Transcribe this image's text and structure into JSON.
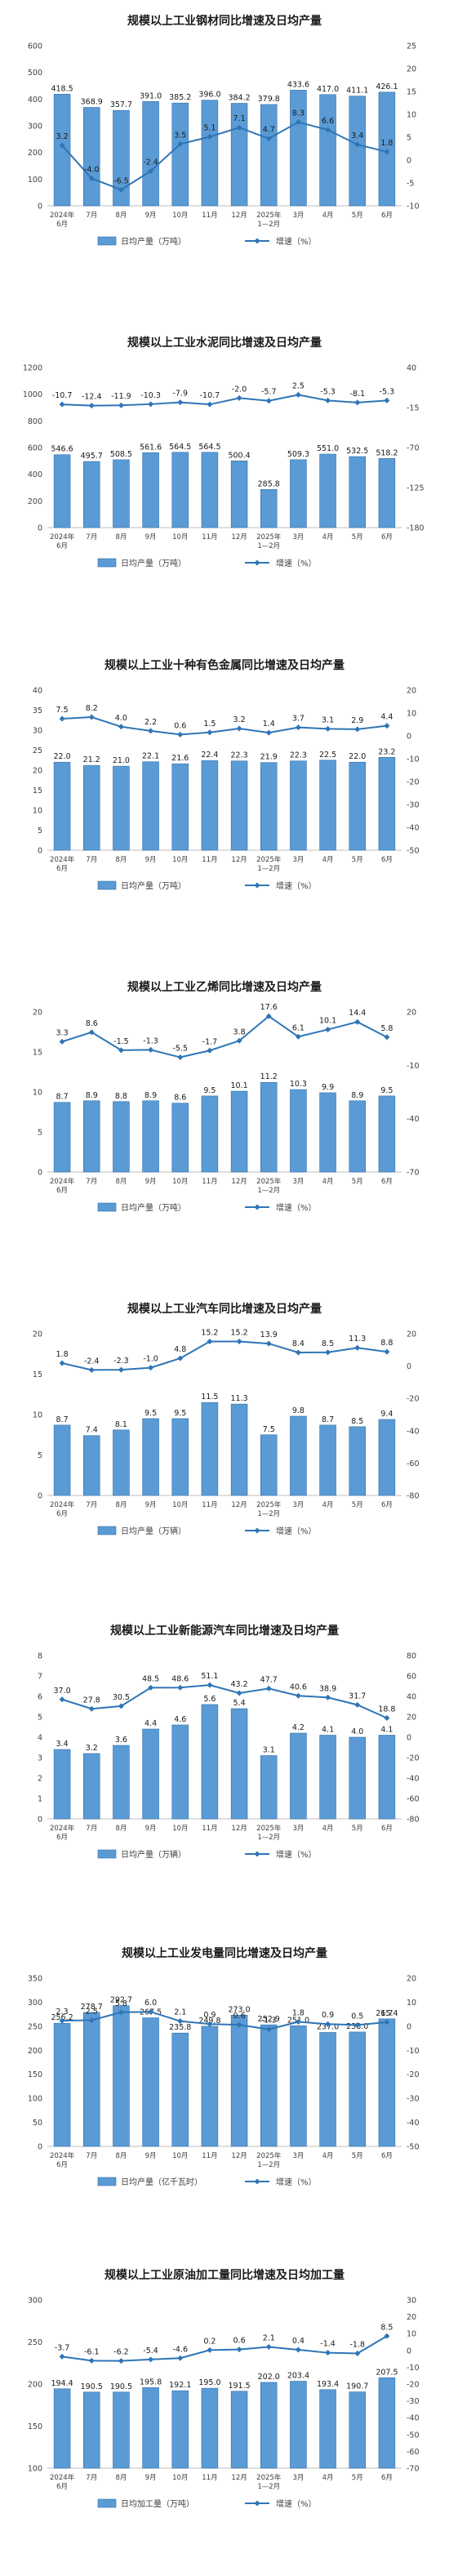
{
  "charts_meta": {
    "bar_color": "#5b9bd5",
    "bar_stroke": "#2f6ea8",
    "line_color": "#2e75b6",
    "grid_color": "#d9d9d9",
    "axis_text_color": "#404040"
  },
  "chart_data": [
    {
      "type": "bar+line",
      "title": "规模以上工业钢材同比增速及日均产量",
      "categories": [
        "2024年6月",
        "7月",
        "8月",
        "9月",
        "10月",
        "11月",
        "12月",
        "2025年1—2月",
        "3月",
        "4月",
        "5月",
        "6月"
      ],
      "series": [
        {
          "name": "日均产量（万吨）",
          "type": "bar",
          "axis": "left",
          "values": [
            418.5,
            368.9,
            357.7,
            391.0,
            385.2,
            396.0,
            384.2,
            379.8,
            433.6,
            417.0,
            411.1,
            426.1
          ]
        },
        {
          "name": "增速（%）",
          "type": "line",
          "axis": "right",
          "values": [
            3.2,
            -4.0,
            -6.5,
            -2.4,
            3.5,
            5.1,
            7.1,
            4.7,
            8.3,
            6.6,
            3.4,
            1.8
          ]
        }
      ],
      "left_axis": {
        "ylim": [
          0,
          600
        ],
        "ticks": [
          0,
          100,
          200,
          300,
          400,
          500,
          600
        ]
      },
      "right_axis": {
        "ylim": [
          -10,
          25
        ],
        "ticks": [
          25,
          20,
          15,
          10,
          5,
          0,
          -5,
          -10
        ]
      },
      "legend": {
        "position": "bottom-left"
      },
      "grid": false
    },
    {
      "type": "bar+line",
      "title": "规模以上工业水泥同比增速及日均产量",
      "categories": [
        "2024年6月",
        "7月",
        "8月",
        "9月",
        "10月",
        "11月",
        "12月",
        "2025年1—2月",
        "3月",
        "4月",
        "5月",
        "6月"
      ],
      "series": [
        {
          "name": "日均产量（万吨）",
          "type": "bar",
          "axis": "left",
          "values": [
            546.6,
            495.7,
            508.5,
            561.6,
            564.5,
            564.5,
            500.4,
            285.8,
            509.3,
            551.0,
            532.5,
            518.2
          ]
        },
        {
          "name": "增速（%）",
          "type": "line",
          "axis": "right",
          "values": [
            -10.7,
            -12.4,
            -11.9,
            -10.3,
            -7.9,
            -10.7,
            -2.0,
            -5.7,
            2.5,
            -5.3,
            -8.1,
            -5.3
          ]
        }
      ],
      "left_axis": {
        "ylim": [
          0,
          1200
        ],
        "ticks": [
          0,
          200,
          400,
          600,
          800,
          1000,
          1200
        ]
      },
      "right_axis": {
        "ylim": [
          -180,
          40
        ],
        "ticks": [
          40,
          -15,
          -70,
          -125,
          -180
        ]
      },
      "legend": {
        "position": "bottom-left"
      },
      "grid": false
    },
    {
      "type": "bar+line",
      "title": "规模以上工业十种有色金属同比增速及日均产量",
      "categories": [
        "2024年6月",
        "7月",
        "8月",
        "9月",
        "10月",
        "11月",
        "12月",
        "2025年1—2月",
        "3月",
        "4月",
        "5月",
        "6月"
      ],
      "series": [
        {
          "name": "日均产量（万吨）",
          "type": "bar",
          "axis": "left",
          "values": [
            22.0,
            21.2,
            21.0,
            22.1,
            21.6,
            22.4,
            22.3,
            21.9,
            22.3,
            22.5,
            22.0,
            23.2
          ]
        },
        {
          "name": "增速（%）",
          "type": "line",
          "axis": "right",
          "values": [
            7.5,
            8.2,
            4.0,
            2.2,
            0.6,
            1.5,
            3.2,
            1.4,
            3.7,
            3.1,
            2.9,
            4.4
          ]
        }
      ],
      "left_axis": {
        "ylim": [
          0,
          40
        ],
        "ticks": [
          0,
          5,
          10,
          15,
          20,
          25,
          30,
          35,
          40
        ]
      },
      "right_axis": {
        "ylim": [
          -50,
          20
        ],
        "ticks": [
          20,
          10,
          0,
          -10,
          -20,
          -30,
          -40,
          -50
        ]
      },
      "legend": {
        "position": "bottom-left"
      },
      "grid": false
    },
    {
      "type": "bar+line",
      "title": "规模以上工业乙烯同比增速及日均产量",
      "categories": [
        "2024年6月",
        "7月",
        "8月",
        "9月",
        "10月",
        "11月",
        "12月",
        "2025年1—2月",
        "3月",
        "4月",
        "5月",
        "6月"
      ],
      "series": [
        {
          "name": "日均产量（万吨）",
          "type": "bar",
          "axis": "left",
          "values": [
            8.7,
            8.9,
            8.8,
            8.9,
            8.6,
            9.5,
            10.1,
            11.2,
            10.3,
            9.9,
            8.9,
            9.5
          ]
        },
        {
          "name": "增速（%）",
          "type": "line",
          "axis": "right",
          "values": [
            3.3,
            8.6,
            -1.5,
            -1.3,
            -5.5,
            -1.7,
            3.8,
            17.6,
            6.1,
            10.1,
            14.4,
            5.8
          ]
        }
      ],
      "left_axis": {
        "ylim": [
          0,
          20
        ],
        "ticks": [
          0,
          5,
          10,
          15,
          20
        ]
      },
      "right_axis": {
        "ylim": [
          -70,
          20
        ],
        "ticks": [
          20,
          -10,
          -40,
          -70
        ]
      },
      "legend": {
        "position": "bottom-left"
      },
      "grid": false
    },
    {
      "type": "bar+line",
      "title": "规模以上工业汽车同比增速及日均产量",
      "categories": [
        "2024年6月",
        "7月",
        "8月",
        "9月",
        "10月",
        "11月",
        "12月",
        "2025年1—2月",
        "3月",
        "4月",
        "5月",
        "6月"
      ],
      "series": [
        {
          "name": "日均产量（万辆）",
          "type": "bar",
          "axis": "left",
          "values": [
            8.7,
            7.4,
            8.1,
            9.5,
            9.5,
            11.5,
            11.3,
            7.5,
            9.8,
            8.7,
            8.5,
            9.4
          ]
        },
        {
          "name": "增速（%）",
          "type": "line",
          "axis": "right",
          "values": [
            1.8,
            -2.4,
            -2.3,
            -1.0,
            4.8,
            15.2,
            15.2,
            13.9,
            8.4,
            8.5,
            11.3,
            8.8
          ]
        }
      ],
      "left_axis": {
        "ylim": [
          0,
          20
        ],
        "ticks": [
          0,
          5,
          10,
          15,
          20
        ]
      },
      "right_axis": {
        "ylim": [
          -80,
          20
        ],
        "ticks": [
          20,
          0,
          -20,
          -40,
          -60,
          -80
        ]
      },
      "legend": {
        "position": "bottom-left"
      },
      "grid": false
    },
    {
      "type": "bar+line",
      "title": "规模以上工业新能源汽车同比增速及日均产量",
      "categories": [
        "2024年6月",
        "7月",
        "8月",
        "9月",
        "10月",
        "11月",
        "12月",
        "2025年1—2月",
        "3月",
        "4月",
        "5月",
        "6月"
      ],
      "series": [
        {
          "name": "日均产量（万辆）",
          "type": "bar",
          "axis": "left",
          "values": [
            3.4,
            3.2,
            3.6,
            4.4,
            4.6,
            5.6,
            5.4,
            3.1,
            4.2,
            4.1,
            4.0,
            4.1
          ]
        },
        {
          "name": "增速（%）",
          "type": "line",
          "axis": "right",
          "values": [
            37.0,
            27.8,
            30.5,
            48.5,
            48.6,
            51.1,
            43.2,
            47.7,
            40.6,
            38.9,
            31.7,
            18.8
          ]
        }
      ],
      "left_axis": {
        "ylim": [
          0,
          8
        ],
        "ticks": [
          0,
          1,
          2,
          3,
          4,
          5,
          6,
          7,
          8
        ]
      },
      "right_axis": {
        "ylim": [
          -80,
          80
        ],
        "ticks": [
          80,
          60,
          40,
          20,
          0,
          -20,
          -40,
          -60,
          -80
        ]
      },
      "legend": {
        "position": "bottom-left"
      },
      "grid": false
    },
    {
      "type": "bar+line",
      "title": "规模以上工业发电量同比增速及日均产量",
      "categories": [
        "2024年6月",
        "7月",
        "8月",
        "9月",
        "10月",
        "11月",
        "12月",
        "2025年1—2月",
        "3月",
        "4月",
        "5月",
        "6月"
      ],
      "series": [
        {
          "name": "日均产量（亿千瓦时）",
          "type": "bar",
          "axis": "left",
          "values": [
            256.2,
            278.7,
            292.7,
            267.5,
            235.8,
            249.8,
            273.0,
            252.9,
            251.0,
            237.0,
            238.0,
            265.4
          ]
        },
        {
          "name": "增速（%）",
          "type": "line",
          "axis": "right",
          "values": [
            2.3,
            2.5,
            5.8,
            6.0,
            2.1,
            0.9,
            0.6,
            -1.3,
            1.8,
            0.9,
            0.5,
            1.7
          ]
        }
      ],
      "left_axis": {
        "ylim": [
          0,
          350
        ],
        "ticks": [
          0,
          50,
          100,
          150,
          200,
          250,
          300,
          350
        ]
      },
      "right_axis": {
        "ylim": [
          -50,
          20
        ],
        "ticks": [
          20,
          10,
          0,
          -10,
          -20,
          -30,
          -40,
          -50
        ]
      },
      "legend": {
        "position": "bottom-left"
      },
      "grid": false
    },
    {
      "type": "bar+line",
      "title": "规模以上工业原油加工量同比增速及日均加工量",
      "categories": [
        "2024年6月",
        "7月",
        "8月",
        "9月",
        "10月",
        "11月",
        "12月",
        "2025年1—2月",
        "3月",
        "4月",
        "5月",
        "6月"
      ],
      "series": [
        {
          "name": "日均加工量（万吨）",
          "type": "bar",
          "axis": "left",
          "values": [
            194.4,
            190.5,
            190.5,
            195.8,
            192.1,
            195.0,
            191.5,
            202.0,
            203.4,
            193.4,
            190.7,
            207.5
          ]
        },
        {
          "name": "增速（%）",
          "type": "line",
          "axis": "right",
          "values": [
            -3.7,
            -6.1,
            -6.2,
            -5.4,
            -4.6,
            0.2,
            0.6,
            2.1,
            0.4,
            -1.4,
            -1.8,
            8.5
          ]
        }
      ],
      "left_axis": {
        "ylim": [
          100,
          300
        ],
        "ticks": [
          100,
          150,
          200,
          250,
          300
        ]
      },
      "right_axis": {
        "ylim": [
          -70,
          30
        ],
        "ticks": [
          30,
          20,
          10,
          0,
          -10,
          -20,
          -30,
          -40,
          -50,
          -60,
          -70
        ]
      },
      "legend": {
        "position": "bottom-left"
      },
      "grid": false
    }
  ]
}
